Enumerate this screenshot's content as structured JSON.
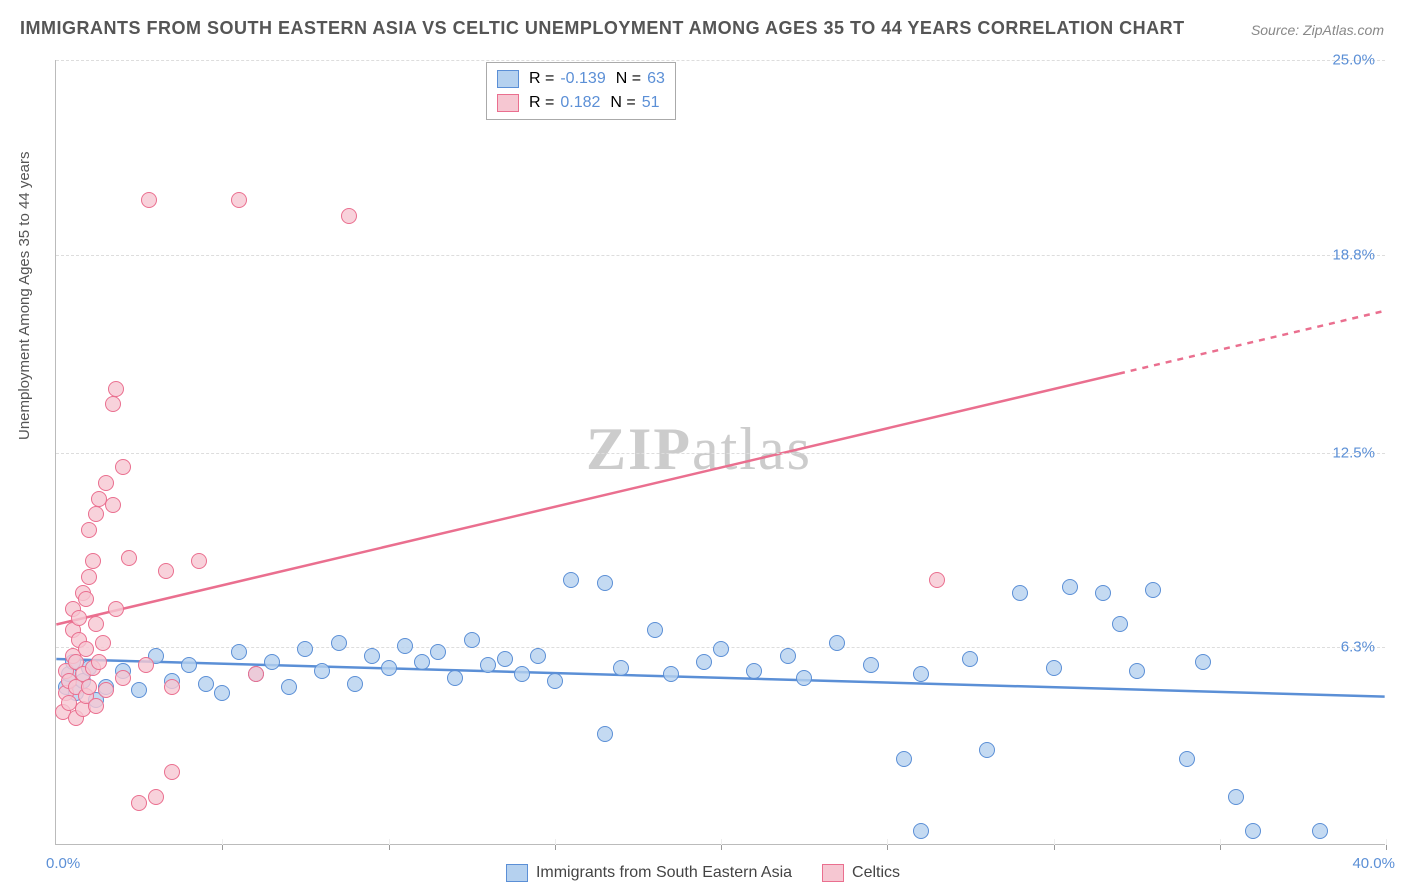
{
  "title": "IMMIGRANTS FROM SOUTH EASTERN ASIA VS CELTIC UNEMPLOYMENT AMONG AGES 35 TO 44 YEARS CORRELATION CHART",
  "source": "Source: ZipAtlas.com",
  "ylabel": "Unemployment Among Ages 35 to 44 years",
  "watermark_a": "ZIP",
  "watermark_b": "atlas",
  "chart": {
    "type": "scatter",
    "background_color": "#ffffff",
    "grid_color": "#dddddd",
    "axis_color": "#bbbbbb",
    "tick_label_color": "#5b8fd6",
    "xlim": [
      0,
      40
    ],
    "ylim": [
      0,
      25
    ],
    "xticks": [
      0,
      5,
      10,
      15,
      20,
      25,
      30,
      35,
      40
    ],
    "xtick_labels": {
      "min": "0.0%",
      "max": "40.0%"
    },
    "yticks": [
      6.3,
      12.5,
      18.8,
      25.0
    ],
    "ytick_labels": [
      "6.3%",
      "12.5%",
      "18.8%",
      "25.0%"
    ],
    "point_radius": 8,
    "point_radius_large": 11,
    "line_width": 2.5,
    "legend_top": [
      {
        "swatch_fill": "#b5d1ef",
        "swatch_stroke": "#5b8fd6",
        "r_label": "R =",
        "r_val": "-0.139",
        "n_label": "N =",
        "n_val": "63"
      },
      {
        "swatch_fill": "#f6c7d2",
        "swatch_stroke": "#ea6f8f",
        "r_label": "R =",
        "r_val": "0.182",
        "n_label": "N =",
        "n_val": "51"
      }
    ],
    "legend_bottom": [
      {
        "swatch_fill": "#b5d1ef",
        "swatch_stroke": "#5b8fd6",
        "label": "Immigrants from South Eastern Asia"
      },
      {
        "swatch_fill": "#f6c7d2",
        "swatch_stroke": "#ea6f8f",
        "label": "Celtics"
      }
    ],
    "series": [
      {
        "name": "blue",
        "fill": "#b5d1efcc",
        "stroke": "#5b8fd6",
        "trend": {
          "x1": 0,
          "y1": 5.9,
          "x2": 40,
          "y2": 4.7,
          "dash_from_x": null
        },
        "points": [
          [
            0.3,
            5.0
          ],
          [
            0.4,
            5.4
          ],
          [
            0.5,
            5.8
          ],
          [
            0.6,
            4.8
          ],
          [
            0.8,
            5.2
          ],
          [
            1.0,
            5.6
          ],
          [
            1.2,
            4.6
          ],
          [
            1.5,
            5.0
          ],
          [
            2.0,
            5.5
          ],
          [
            2.5,
            4.9
          ],
          [
            3.0,
            6.0
          ],
          [
            3.5,
            5.2
          ],
          [
            4.0,
            5.7
          ],
          [
            4.5,
            5.1
          ],
          [
            5.0,
            4.8
          ],
          [
            5.5,
            6.1
          ],
          [
            6.0,
            5.4
          ],
          [
            6.5,
            5.8
          ],
          [
            7.0,
            5.0
          ],
          [
            7.5,
            6.2
          ],
          [
            8.0,
            5.5
          ],
          [
            8.5,
            6.4
          ],
          [
            9.0,
            5.1
          ],
          [
            9.5,
            6.0
          ],
          [
            10.0,
            5.6
          ],
          [
            10.5,
            6.3
          ],
          [
            11.0,
            5.8
          ],
          [
            11.5,
            6.1
          ],
          [
            12.0,
            5.3
          ],
          [
            12.5,
            6.5
          ],
          [
            13.0,
            5.7
          ],
          [
            13.5,
            5.9
          ],
          [
            14.0,
            5.4
          ],
          [
            14.5,
            6.0
          ],
          [
            15.0,
            5.2
          ],
          [
            15.5,
            8.4
          ],
          [
            16.5,
            8.3
          ],
          [
            16.5,
            3.5
          ],
          [
            17.0,
            5.6
          ],
          [
            18.0,
            6.8
          ],
          [
            18.5,
            5.4
          ],
          [
            19.5,
            5.8
          ],
          [
            20.0,
            6.2
          ],
          [
            21.0,
            5.5
          ],
          [
            22.0,
            6.0
          ],
          [
            22.5,
            5.3
          ],
          [
            23.5,
            6.4
          ],
          [
            24.5,
            5.7
          ],
          [
            25.5,
            2.7
          ],
          [
            26.0,
            5.4
          ],
          [
            26.0,
            0.4
          ],
          [
            27.5,
            5.9
          ],
          [
            28.0,
            3.0
          ],
          [
            29.0,
            8.0
          ],
          [
            30.0,
            5.6
          ],
          [
            30.5,
            8.2
          ],
          [
            31.5,
            8.0
          ],
          [
            32.0,
            7.0
          ],
          [
            32.5,
            5.5
          ],
          [
            33.0,
            8.1
          ],
          [
            34.0,
            2.7
          ],
          [
            34.5,
            5.8
          ],
          [
            35.5,
            1.5
          ],
          [
            36.0,
            0.4
          ],
          [
            38.0,
            0.4
          ]
        ]
      },
      {
        "name": "pink",
        "fill": "#f6c7d2cc",
        "stroke": "#ea6f8f",
        "trend": {
          "x1": 0,
          "y1": 7.0,
          "x2": 40,
          "y2": 17.0,
          "dash_from_x": 32
        },
        "points": [
          [
            0.2,
            4.2
          ],
          [
            0.3,
            4.8
          ],
          [
            0.3,
            5.5
          ],
          [
            0.4,
            4.5
          ],
          [
            0.4,
            5.2
          ],
          [
            0.5,
            6.0
          ],
          [
            0.5,
            6.8
          ],
          [
            0.5,
            7.5
          ],
          [
            0.6,
            4.0
          ],
          [
            0.6,
            5.0
          ],
          [
            0.6,
            5.8
          ],
          [
            0.7,
            6.5
          ],
          [
            0.7,
            7.2
          ],
          [
            0.8,
            4.3
          ],
          [
            0.8,
            5.4
          ],
          [
            0.8,
            8.0
          ],
          [
            0.9,
            4.7
          ],
          [
            0.9,
            6.2
          ],
          [
            0.9,
            7.8
          ],
          [
            1.0,
            5.0
          ],
          [
            1.0,
            8.5
          ],
          [
            1.0,
            10.0
          ],
          [
            1.1,
            5.6
          ],
          [
            1.1,
            9.0
          ],
          [
            1.2,
            4.4
          ],
          [
            1.2,
            7.0
          ],
          [
            1.2,
            10.5
          ],
          [
            1.3,
            5.8
          ],
          [
            1.3,
            11.0
          ],
          [
            1.4,
            6.4
          ],
          [
            1.5,
            4.9
          ],
          [
            1.5,
            11.5
          ],
          [
            1.7,
            10.8
          ],
          [
            1.7,
            14.0
          ],
          [
            1.8,
            7.5
          ],
          [
            1.8,
            14.5
          ],
          [
            2.0,
            5.3
          ],
          [
            2.0,
            12.0
          ],
          [
            2.2,
            9.1
          ],
          [
            2.5,
            1.3
          ],
          [
            2.7,
            5.7
          ],
          [
            2.8,
            20.5
          ],
          [
            3.0,
            1.5
          ],
          [
            3.3,
            8.7
          ],
          [
            3.5,
            2.3
          ],
          [
            3.5,
            5.0
          ],
          [
            4.3,
            9.0
          ],
          [
            5.5,
            20.5
          ],
          [
            6.0,
            5.4
          ],
          [
            8.8,
            20.0
          ],
          [
            26.5,
            8.4
          ]
        ]
      }
    ]
  }
}
